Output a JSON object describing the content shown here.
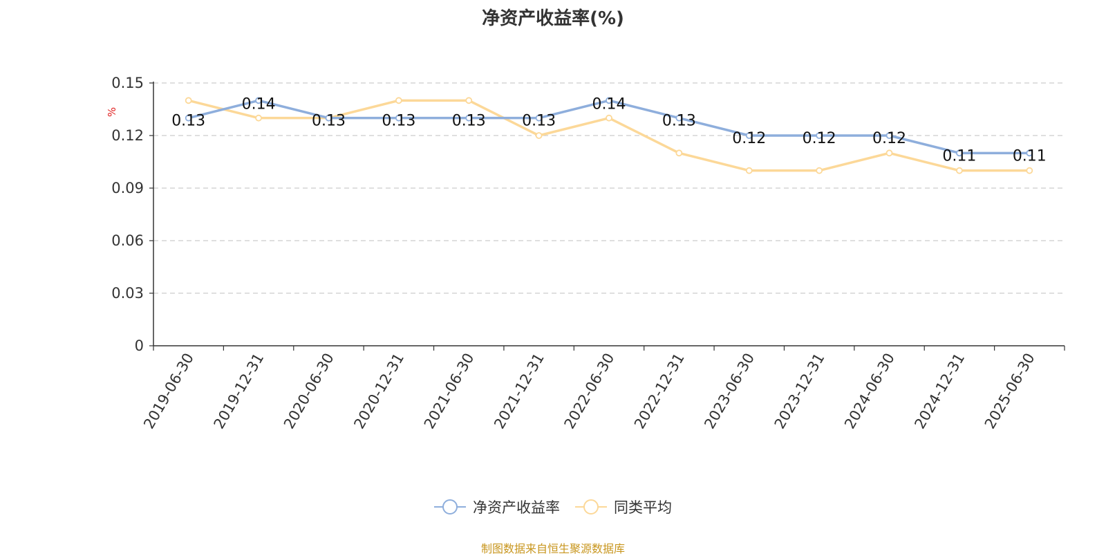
{
  "chart_data": {
    "type": "line",
    "title": "净资产收益率(%)",
    "ylabel": "%",
    "ylim": [
      0,
      0.15
    ],
    "y_ticks": [
      "0",
      "0.03",
      "0.06",
      "0.09",
      "0.12",
      "0.15"
    ],
    "y_tick_values": [
      0,
      0.03,
      0.06,
      0.09,
      0.12,
      0.15
    ],
    "grid": true,
    "legend_position": "bottom",
    "categories": [
      "2019-06-30",
      "2019-12-31",
      "2020-06-30",
      "2020-12-31",
      "2021-06-30",
      "2021-12-31",
      "2022-06-30",
      "2022-12-31",
      "2023-06-30",
      "2023-12-31",
      "2024-06-30",
      "2024-12-31",
      "2025-06-30"
    ],
    "series": [
      {
        "name": "净资产收益率",
        "color": "#8eaedc",
        "values": [
          0.13,
          0.14,
          0.13,
          0.13,
          0.13,
          0.13,
          0.14,
          0.13,
          0.12,
          0.12,
          0.12,
          0.11,
          0.11
        ],
        "data_labels": [
          "0.13",
          "0.14",
          "0.13",
          "0.13",
          "0.13",
          "0.13",
          "0.14",
          "0.13",
          "0.12",
          "0.12",
          "0.12",
          "0.11",
          "0.11"
        ]
      },
      {
        "name": "同类平均",
        "color": "#fcd898",
        "values": [
          0.14,
          0.13,
          0.13,
          0.14,
          0.14,
          0.12,
          0.13,
          0.11,
          0.1,
          0.1,
          0.11,
          0.1,
          0.1
        ]
      }
    ]
  },
  "source_text": "制图数据来自恒生聚源数据库",
  "colors": {
    "title": "#333333",
    "axis": "#333333",
    "grid": "#cccccc",
    "unit_label": "#e02020",
    "source": "#c8961e"
  }
}
